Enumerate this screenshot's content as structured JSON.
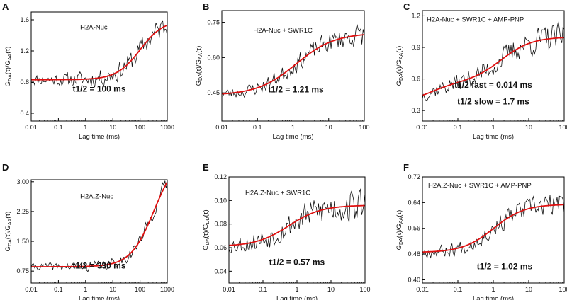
{
  "figure": {
    "colors": {
      "data": "#111111",
      "fit": "#e01010",
      "axis": "#000000",
      "text": "#111111"
    }
  },
  "chart_data": [
    {
      "panel": "A",
      "type": "line",
      "title": "H2A-Nuc",
      "result_label": "t1/2 = 100 ms",
      "xlabel": "Lag time (ms)",
      "ylabel_main": "G",
      "ylabel_sub1": "DA",
      "ylabel_sub2": "AA",
      "xscale": "log",
      "xlim": [
        0.01,
        1000
      ],
      "ylim": [
        0.3,
        1.7
      ],
      "xticks": [
        0.01,
        0.1,
        1,
        10,
        100,
        1000
      ],
      "xtick_labels": [
        "0.01",
        "0.1",
        "1",
        "10",
        "100",
        "1000"
      ],
      "yticks": [
        0.4,
        0.8,
        1.2,
        1.6
      ],
      "ytick_labels": [
        "0.4",
        "0.8",
        "1.2",
        "1.6"
      ],
      "fit": {
        "base": 0.83,
        "plateau": 1.6,
        "t_half": 100,
        "exponent": 1
      },
      "noise": {
        "amplitude": 0.14,
        "seed": 11
      },
      "series": [
        {
          "name": "",
          "role": "data"
        },
        {
          "name": "",
          "role": "fit"
        }
      ]
    },
    {
      "panel": "B",
      "type": "line",
      "title": "H2A-Nuc + SWR1C",
      "result_label": "t1/2 = 1.21 ms",
      "xlabel": "Lag time (ms)",
      "ylabel_main": "G",
      "ylabel_sub1": "DA",
      "ylabel_sub2": "AA",
      "xscale": "log",
      "xlim": [
        0.01,
        100
      ],
      "ylim": [
        0.33,
        0.8
      ],
      "xticks": [
        0.01,
        0.1,
        1,
        10,
        100
      ],
      "xtick_labels": [
        "0.01",
        "0.1",
        "1",
        "10",
        "100"
      ],
      "yticks": [
        0.45,
        0.6,
        0.75
      ],
      "ytick_labels": [
        "0.45",
        "0.60",
        "0.75"
      ],
      "fit": {
        "base": 0.44,
        "plateau": 0.705,
        "t_half": 1.21,
        "exponent": 0.8
      },
      "noise": {
        "amplitude": 0.045,
        "seed": 23
      },
      "series": [
        {
          "name": "",
          "role": "data"
        },
        {
          "name": "",
          "role": "fit"
        }
      ]
    },
    {
      "panel": "C",
      "type": "line",
      "title": "H2A-Nuc + SWR1C + AMP-PNP",
      "result_label": "t1/2 fast = 0.014 ms",
      "result_label_2": "t1/2 slow = 1.7 ms",
      "xlabel": "Lag time (ms)",
      "ylabel_main": "G",
      "ylabel_sub1": "DA",
      "ylabel_sub2": "AA",
      "xscale": "log",
      "xlim": [
        0.01,
        100
      ],
      "ylim": [
        0.2,
        1.25
      ],
      "xticks": [
        0.01,
        0.1,
        1,
        10,
        100
      ],
      "xtick_labels": [
        "0.01",
        "0.1",
        "1",
        "10",
        "100"
      ],
      "yticks": [
        0.3,
        0.6,
        0.9,
        1.2
      ],
      "ytick_labels": [
        "0.3",
        "0.6",
        "0.9",
        "1.2"
      ],
      "fit": {
        "base": 0.35,
        "plateau": 1.0,
        "components": [
          {
            "amplitude": 0.22,
            "t_half": 0.014
          },
          {
            "amplitude": 0.43,
            "t_half": 1.7
          }
        ],
        "exponent": 1
      },
      "noise": {
        "amplitude": 0.13,
        "seed": 37
      },
      "series": [
        {
          "name": "",
          "role": "data"
        },
        {
          "name": "",
          "role": "fit"
        }
      ]
    },
    {
      "panel": "D",
      "type": "line",
      "title": "H2A.Z-Nuc",
      "result_label": "t1/2 = 330 ms",
      "xlabel": "Lag time (ms)",
      "ylabel_main": "G",
      "ylabel_sub1": "DA",
      "ylabel_sub2": "AA",
      "xscale": "log",
      "xlim": [
        0.01,
        1000
      ],
      "ylim": [
        0.45,
        3.05
      ],
      "xticks": [
        0.01,
        0.1,
        1,
        10,
        100,
        1000
      ],
      "xtick_labels": [
        "0.01",
        "0.1",
        "1",
        "10",
        "100",
        "1000"
      ],
      "yticks": [
        0.75,
        1.5,
        2.25,
        3.0
      ],
      "ytick_labels": [
        "0.75",
        "1.50",
        "2.25",
        "3.00"
      ],
      "fit": {
        "base": 0.86,
        "plateau": 3.7,
        "t_half": 330,
        "exponent": 1
      },
      "noise": {
        "amplitude": 0.16,
        "seed": 41
      },
      "series": [
        {
          "name": "",
          "role": "data"
        },
        {
          "name": "",
          "role": "fit"
        }
      ]
    },
    {
      "panel": "E",
      "type": "line",
      "title": "H2A.Z-Nuc + SWR1C",
      "result_label": "t1/2 = 0.57 ms",
      "xlabel": "Lag time (ms)",
      "ylabel_main": "G",
      "ylabel_sub1": "DA",
      "ylabel_sub2": "DD",
      "xscale": "log",
      "xlim": [
        0.01,
        100
      ],
      "ylim": [
        0.03,
        0.12
      ],
      "xticks": [
        0.01,
        0.1,
        1,
        10,
        100
      ],
      "xtick_labels": [
        "0.01",
        "0.1",
        "1",
        "10",
        "100"
      ],
      "yticks": [
        0.04,
        0.06,
        0.08,
        0.1,
        0.12
      ],
      "ytick_labels": [
        "0.04",
        "0.06",
        "0.08",
        "0.10",
        "0.12"
      ],
      "fit": {
        "base": 0.061,
        "plateau": 0.096,
        "t_half": 0.57,
        "exponent": 0.9
      },
      "noise": {
        "amplitude": 0.014,
        "seed": 53
      },
      "series": [
        {
          "name": "",
          "role": "data"
        },
        {
          "name": "",
          "role": "fit"
        }
      ]
    },
    {
      "panel": "F",
      "type": "line",
      "title": "H2A.Z-Nuc + SWR1C + AMP-PNP",
      "result_label": "t1/2 = 1.02 ms",
      "xlabel": "Lag time (ms)",
      "ylabel_main": "G",
      "ylabel_sub1": "DA",
      "ylabel_sub2": "AA",
      "xscale": "log",
      "xlim": [
        0.01,
        100
      ],
      "ylim": [
        0.39,
        0.72
      ],
      "xticks": [
        0.01,
        0.1,
        1,
        10,
        100
      ],
      "xtick_labels": [
        "0.01",
        "0.1",
        "1",
        "10",
        "100"
      ],
      "yticks": [
        0.4,
        0.48,
        0.56,
        0.64,
        0.72
      ],
      "ytick_labels": [
        "0.40",
        "0.48",
        "0.56",
        "0.64",
        "0.72"
      ],
      "fit": {
        "base": 0.485,
        "plateau": 0.635,
        "t_half": 1.02,
        "exponent": 1
      },
      "noise": {
        "amplitude": 0.035,
        "seed": 67
      },
      "series": [
        {
          "name": "",
          "role": "data"
        },
        {
          "name": "",
          "role": "fit"
        }
      ]
    }
  ]
}
